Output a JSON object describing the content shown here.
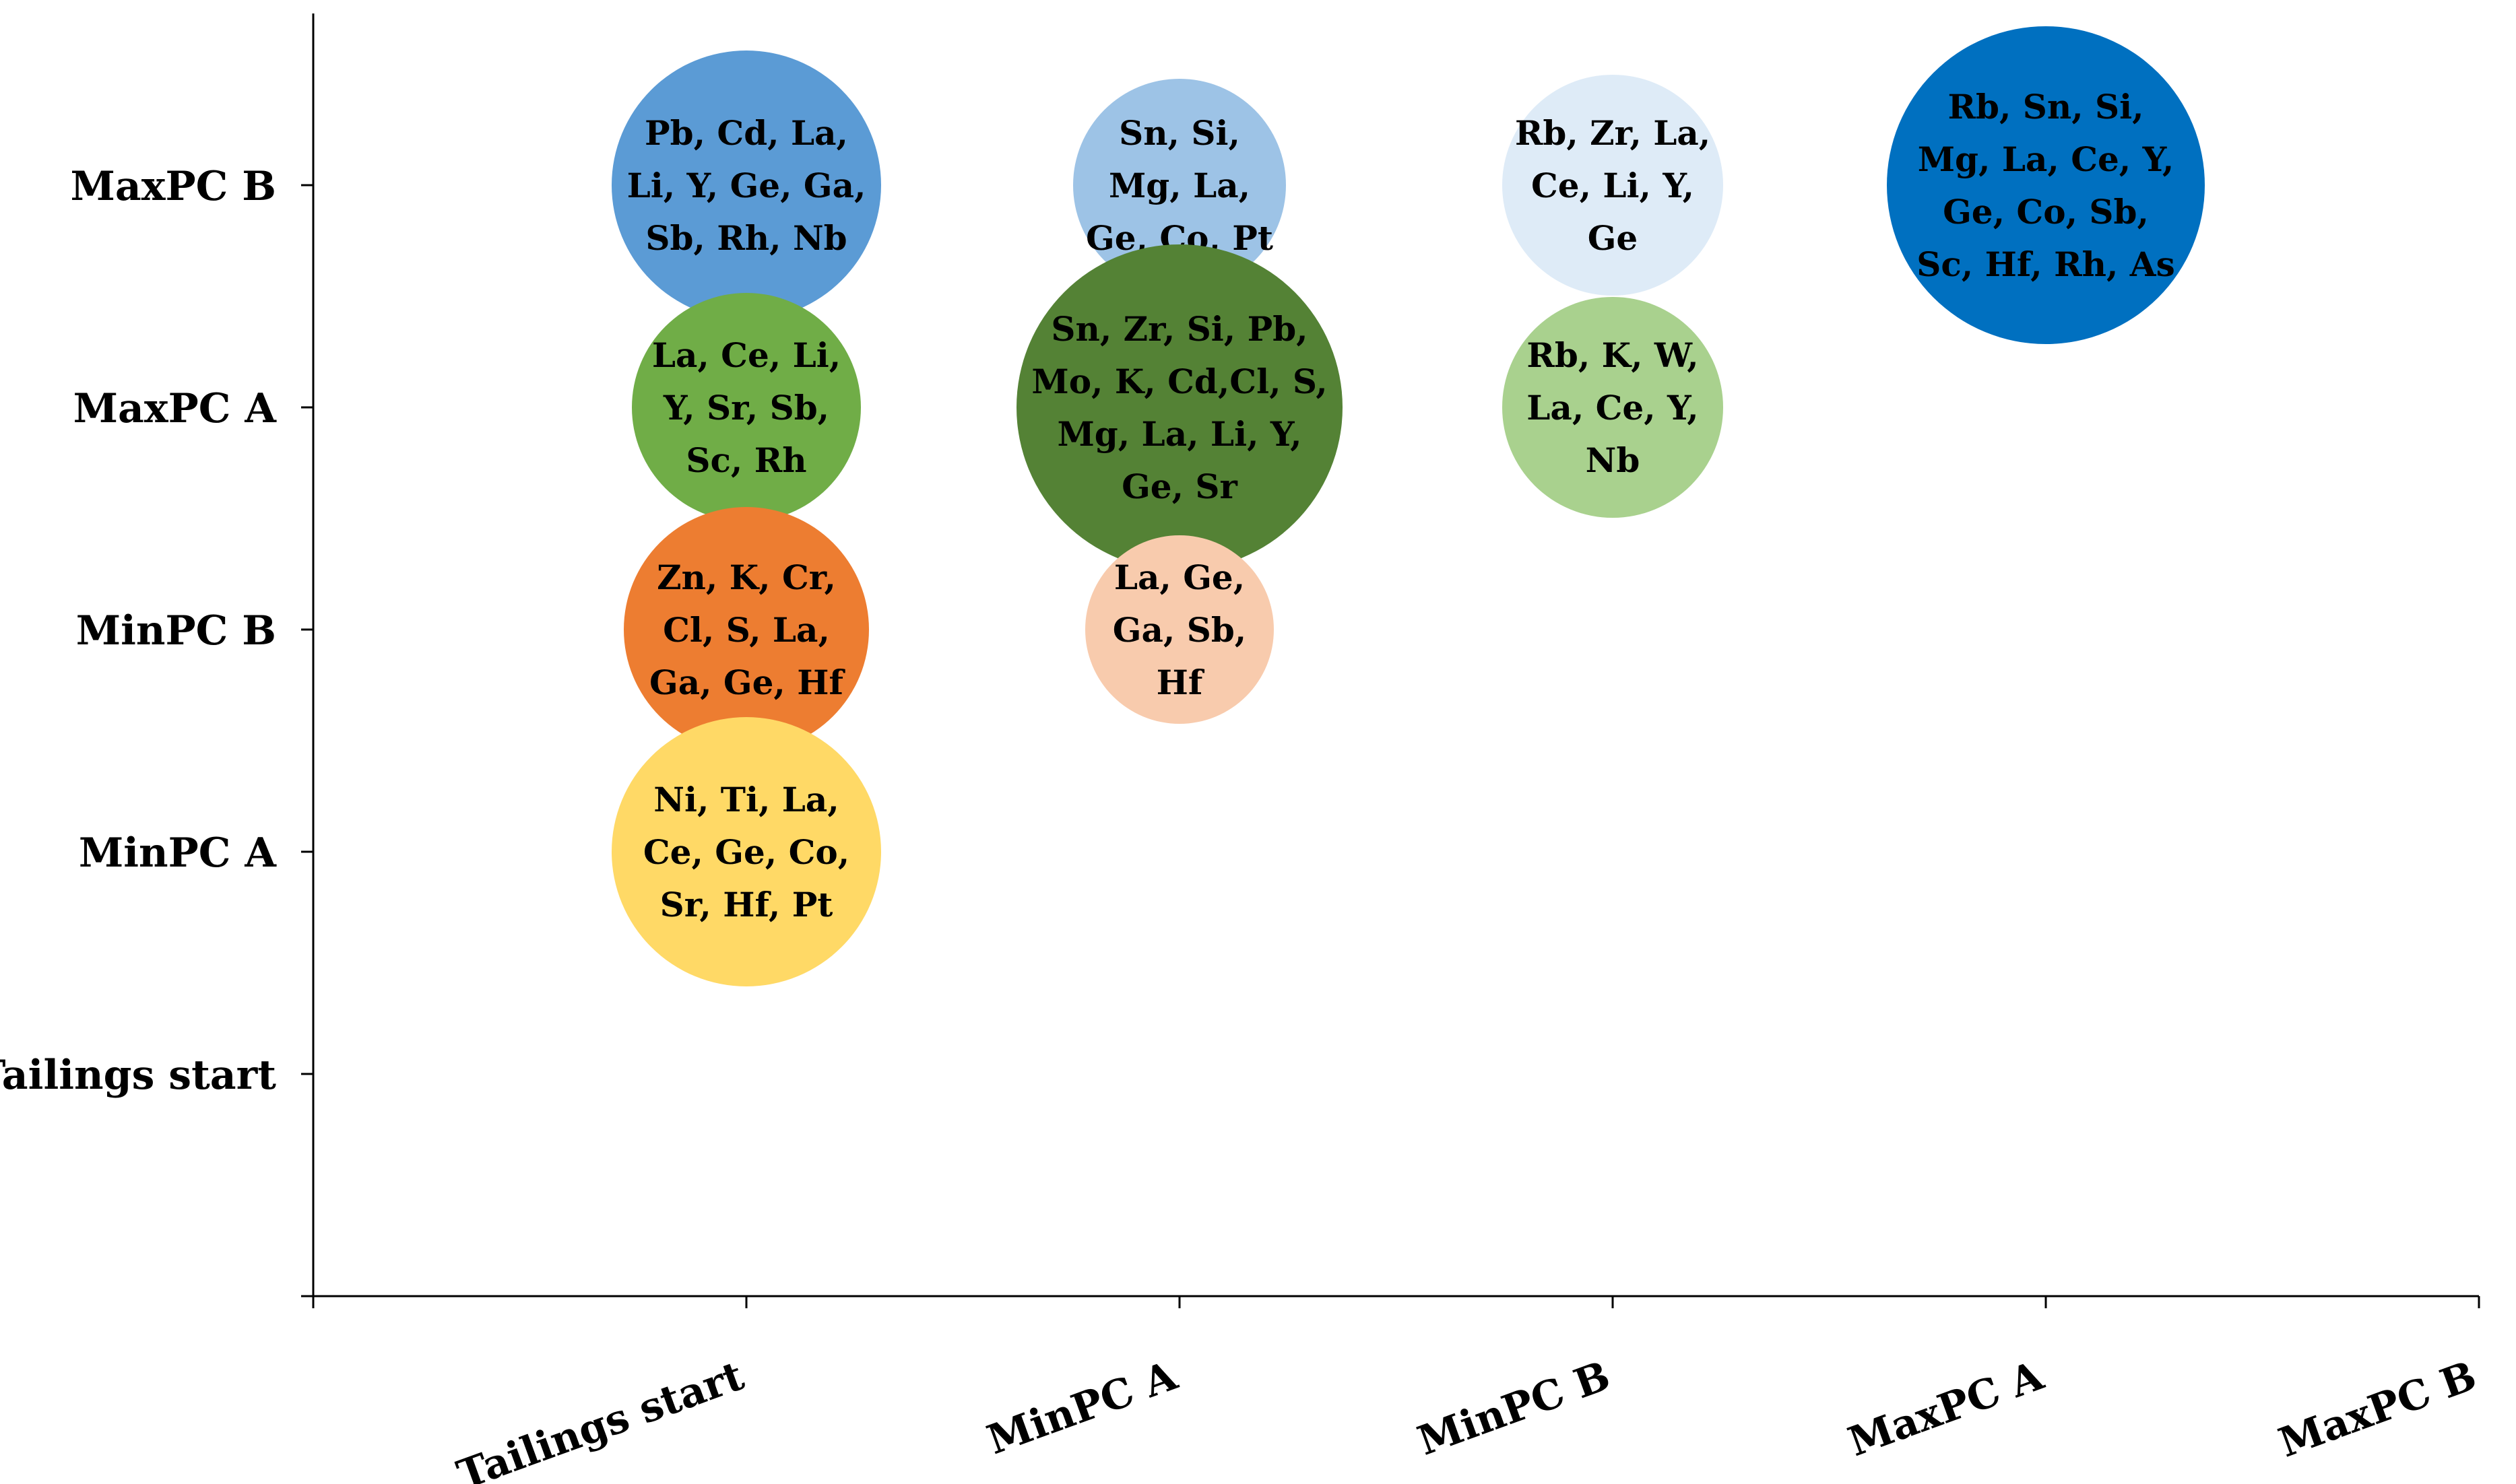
{
  "chart_data": {
    "type": "bubble",
    "x_categories": [
      "Tailings start",
      "MinPC A",
      "MinPC B",
      "MaxPC A",
      "MaxPC B"
    ],
    "y_categories": [
      "Tailings start",
      "MinPC A",
      "MinPC B",
      "MaxPC A",
      "MaxPC B"
    ],
    "bubbles": [
      {
        "x": "Tailings start",
        "y": "MaxPC B",
        "size": 1.0,
        "color": "#5B9BD5",
        "lines": [
          "Pb, Cd, La,",
          "Li, Y, Ge, Ga,",
          "Sb, Rh, Nb"
        ]
      },
      {
        "x": "Tailings start",
        "y": "MaxPC A",
        "size": 0.85,
        "color": "#70AD47",
        "lines": [
          "La, Ce, Li,",
          "Y, Sr, Sb,",
          "Sc, Rh"
        ]
      },
      {
        "x": "Tailings start",
        "y": "MinPC B",
        "size": 0.91,
        "color": "#ED7D31",
        "lines": [
          "Zn, K, Cr,",
          "Cl, S, La,",
          "Ga, Ge, Hf"
        ]
      },
      {
        "x": "Tailings start",
        "y": "MinPC A",
        "size": 1.0,
        "color": "#FFD966",
        "lines": [
          "Ni, Ti, La,",
          "Ce, Ge, Co,",
          "Sr, Hf, Pt"
        ]
      },
      {
        "x": "MinPC A",
        "y": "MaxPC B",
        "size": 0.79,
        "color": "#9DC3E6",
        "lines": [
          "Sn, Si,",
          "Mg, La,",
          "Ge, Co, Pt"
        ]
      },
      {
        "x": "MinPC A",
        "y": "MaxPC A",
        "size": 1.21,
        "color": "#548235",
        "lines": [
          "Sn, Zr, Si, Pb,",
          "Mo, K, Cd,Cl, S,",
          "Mg, La, Li, Y,",
          "Ge, Sr"
        ]
      },
      {
        "x": "MinPC A",
        "y": "MinPC B",
        "size": 0.7,
        "color": "#F8CBAD",
        "lines": [
          "La, Ge,",
          "Ga, Sb,",
          "Hf"
        ]
      },
      {
        "x": "MinPC B",
        "y": "MaxPC B",
        "size": 0.82,
        "color": "#DEEBF7",
        "lines": [
          "Rb, Zr, La,",
          "Ce, Li, Y,",
          "Ge"
        ]
      },
      {
        "x": "MinPC B",
        "y": "MaxPC A",
        "size": 0.82,
        "color": "#A9D18E",
        "lines": [
          "Rb, K, W,",
          "La, Ce, Y,",
          "Nb"
        ]
      },
      {
        "x": "MaxPC A",
        "y": "MaxPC B",
        "size": 1.18,
        "color": "#0070C0",
        "lines": [
          "Rb, Sn, Si,",
          "Mg, La, Ce, Y,",
          "Ge, Co, Sb,",
          "Sc, Hf, Rh, As"
        ]
      }
    ]
  }
}
